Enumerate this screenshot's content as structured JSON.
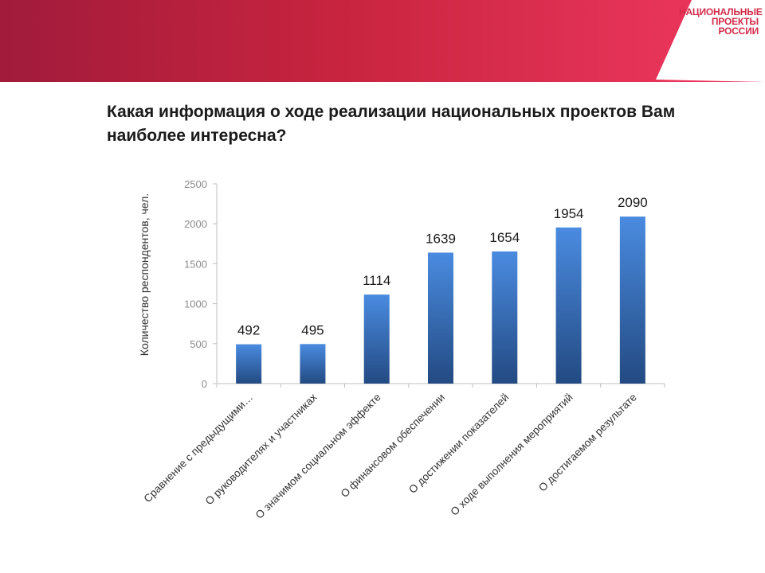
{
  "header": {
    "logo_lines": [
      "НАЦИОНАЛЬНЫЕ",
      "ПРОЕКТЫ",
      "РОССИИ"
    ]
  },
  "colors": {
    "banner_start": "#a11b3b",
    "banner_end": "#f0365e",
    "bar_top": "#4a8be0",
    "bar_bottom": "#234a82",
    "axis": "#bfbfbf",
    "tick_text": "#8c8c8c"
  },
  "title_lines": [
    "Какая информация о ходе реализации национальных проектов Вам",
    "наиболее интересна?"
  ],
  "chart_data": {
    "type": "bar",
    "ylabel": "Количество респондентов, чел.",
    "ylim": [
      0,
      2500
    ],
    "yticks": [
      0,
      500,
      1000,
      1500,
      2000,
      2500
    ],
    "grid": false,
    "categories": [
      "Сравнение с предыдущими…",
      "О руководителях и участниках",
      "О значимом социальном эффекте",
      "О финансовом обеспечении",
      "О достижении показателей",
      "О ходе выполнения мероприятий",
      "О достигаемом результате"
    ],
    "values": [
      492,
      495,
      1114,
      1639,
      1654,
      1954,
      2090
    ]
  }
}
